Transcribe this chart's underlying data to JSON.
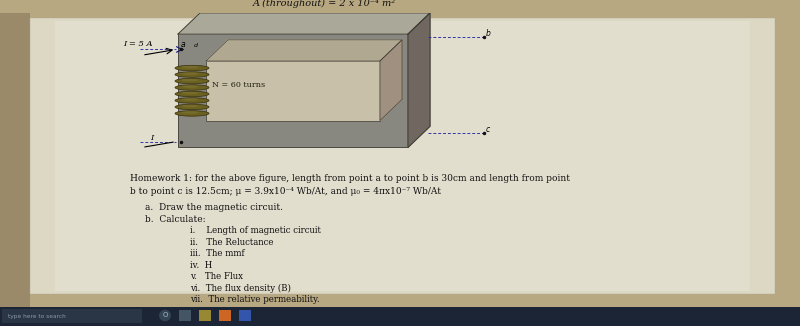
{
  "bg_color_left": "#b8a882",
  "bg_color_right": "#d4ccb8",
  "paper_color": "#ddd8c8",
  "paper_color2": "#e8e4d8",
  "title_text": "A (throughout) = 2 x 10⁻⁴ m²",
  "current_label": "I = 5 A",
  "turns_label": "N = 60 turns",
  "hw_line1": "Homework 1: for the above figure, length from point a to point b is 30cm and length from point",
  "hw_line2": "b to point c is 12.5cm; μ = 3.9x10⁻⁴ Wb/At, and μ₀ = 4πx10⁻⁷ Wb/At",
  "part_a": "a.  Draw the magnetic circuit.",
  "part_b": "b.  Calculate:",
  "items": [
    "i.    Length of magnetic circuit",
    "ii.   The Reluctance",
    "iii.  The mmf",
    "iv.  H",
    "v.   The Flux",
    "vi.  The flux density (B)",
    "vii.  The relative permeability."
  ],
  "taskbar_color": "#1c2535",
  "fig_width": 8.0,
  "fig_height": 3.26,
  "dpi": 100
}
